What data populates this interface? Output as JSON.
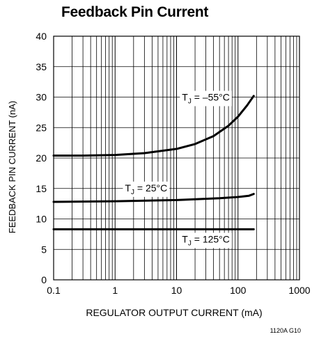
{
  "chart_data": {
    "type": "line",
    "title": "Feedback Pin Current",
    "xlabel": "REGULATOR OUTPUT CURRENT (mA)",
    "ylabel": "FEEDBACK PIN CURRENT (nA)",
    "xscale": "log",
    "xlim": [
      0.1,
      1000
    ],
    "ylim": [
      0,
      40
    ],
    "xticks": [
      "0.1",
      "1",
      "10",
      "100",
      "1000"
    ],
    "yticks": [
      "0",
      "5",
      "10",
      "15",
      "20",
      "25",
      "30",
      "35",
      "40"
    ],
    "grid": true,
    "series": [
      {
        "name": "TJ = –55°C",
        "label_main": "T",
        "label_sub": "J",
        "label_rest": " = –55°C",
        "x": [
          0.1,
          0.3,
          1,
          3,
          10,
          20,
          40,
          70,
          100,
          140,
          180
        ],
        "y": [
          20.4,
          20.4,
          20.5,
          20.8,
          21.5,
          22.3,
          23.6,
          25.3,
          26.8,
          28.6,
          30.2
        ]
      },
      {
        "name": "TJ = 25°C",
        "label_main": "T",
        "label_sub": "J",
        "label_rest": " = 25°C",
        "x": [
          0.1,
          1,
          10,
          50,
          100,
          150,
          180
        ],
        "y": [
          12.8,
          12.9,
          13.1,
          13.4,
          13.6,
          13.8,
          14.1
        ]
      },
      {
        "name": "TJ = 125°C",
        "label_main": "T",
        "label_sub": "J",
        "label_rest": " = 125°C",
        "x": [
          0.1,
          180
        ],
        "y": [
          8.3,
          8.3
        ]
      }
    ]
  },
  "figure_id": "1120A G10"
}
